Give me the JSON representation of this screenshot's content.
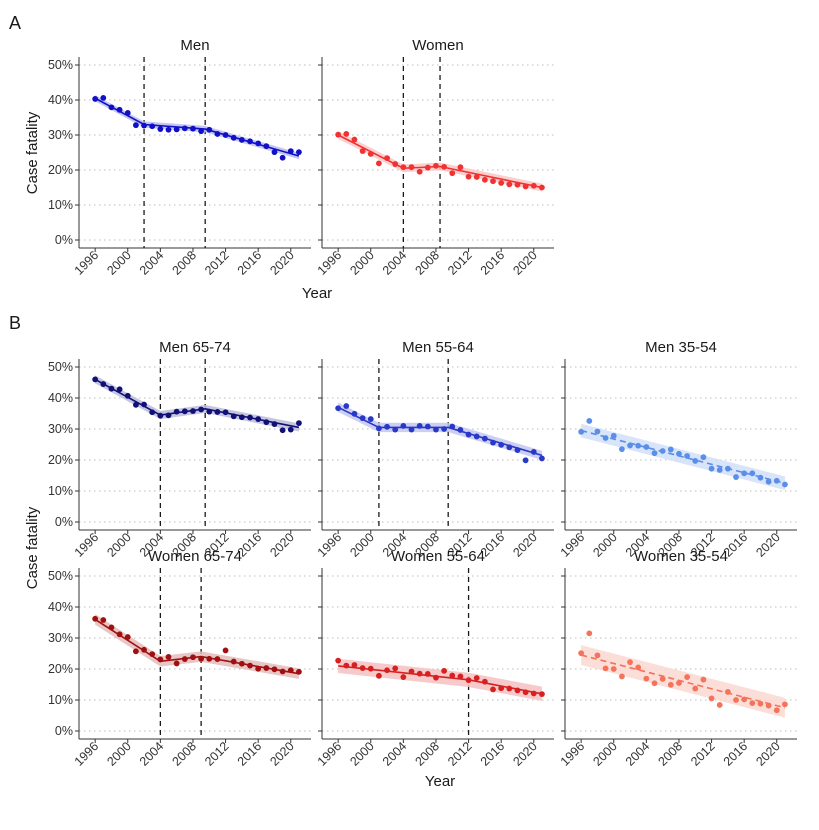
{
  "figure": {
    "panel_a_letter": "A",
    "panel_b_letter": "B",
    "ylabel": "Case fatality",
    "xlabel": "Year",
    "x_tick_labels": [
      "1996",
      "2000",
      "2004",
      "2008",
      "2012",
      "2016",
      "2020"
    ],
    "y_tick_labels": [
      "0%",
      "10%",
      "20%",
      "30%",
      "40%",
      "50%"
    ]
  },
  "colors": {
    "men": "#1010c8",
    "women": "#f03232",
    "men_65_74": "#101078",
    "men_55_64": "#2838c8",
    "men_35_54": "#5a8ee8",
    "women_65_74": "#a01010",
    "women_55_64": "#d82020",
    "women_35_54": "#f4735a",
    "grid": "#bdbdbd",
    "axis": "#333333"
  },
  "chart_data": [
    {
      "type": "line",
      "panel": "A",
      "title": "Men",
      "xlabel": "Year",
      "ylabel": "Case fatality",
      "xlim": [
        1995,
        2021.5
      ],
      "ylim": [
        0,
        50
      ],
      "grid": "horizontal-dotted",
      "x_ticks": [
        1996,
        2000,
        2004,
        2008,
        2012,
        2016,
        2020
      ],
      "y_ticks": [
        0,
        10,
        20,
        30,
        40,
        50
      ],
      "breakpoints": [
        2002,
        2009.5
      ],
      "series": [
        {
          "color": "men",
          "x": [
            1996,
            1997,
            1998,
            1999,
            2000,
            2001,
            2002,
            2003,
            2004,
            2005,
            2006,
            2007,
            2008,
            2009,
            2010,
            2011,
            2012,
            2013,
            2014,
            2015,
            2016,
            2017,
            2018,
            2019,
            2020,
            2021
          ],
          "values": [
            40.3,
            40.6,
            37.9,
            37.2,
            36.3,
            32.8,
            32.7,
            32.5,
            31.7,
            31.5,
            31.6,
            31.9,
            31.8,
            31.1,
            31.5,
            30.3,
            30.0,
            29.2,
            28.6,
            28.2,
            27.6,
            26.8,
            25.1,
            23.5,
            25.4,
            25.1
          ],
          "fit_x": [
            1996,
            2002,
            2009.5,
            2021
          ],
          "fit": [
            40.5,
            33.0,
            31.7,
            24.0
          ],
          "band": 0.9,
          "dashed": false
        }
      ]
    },
    {
      "type": "line",
      "panel": "A",
      "title": "Women",
      "xlim": [
        1995,
        2021.5
      ],
      "ylim": [
        0,
        50
      ],
      "grid": "horizontal-dotted",
      "x_ticks": [
        1996,
        2000,
        2004,
        2008,
        2012,
        2016,
        2020
      ],
      "y_ticks": [
        0,
        10,
        20,
        30,
        40,
        50
      ],
      "breakpoints": [
        2004,
        2008.5
      ],
      "series": [
        {
          "color": "women",
          "x": [
            1996,
            1997,
            1998,
            1999,
            2000,
            2001,
            2002,
            2003,
            2004,
            2005,
            2006,
            2007,
            2008,
            2009,
            2010,
            2011,
            2012,
            2013,
            2014,
            2015,
            2016,
            2017,
            2018,
            2019,
            2020,
            2021
          ],
          "values": [
            30.1,
            30.3,
            28.7,
            25.4,
            24.6,
            21.9,
            23.4,
            21.7,
            20.8,
            20.8,
            19.5,
            20.7,
            21.2,
            20.9,
            19.1,
            20.8,
            18.1,
            18.0,
            17.2,
            16.8,
            16.3,
            15.9,
            15.8,
            15.3,
            15.5,
            15.0
          ],
          "fit_x": [
            1996,
            2004,
            2008.5,
            2021
          ],
          "fit": [
            30.0,
            20.5,
            21.0,
            15.0
          ],
          "band": 1.1,
          "dashed": false
        }
      ]
    },
    {
      "type": "line",
      "panel": "B",
      "title": "Men 65-74",
      "xlim": [
        1995,
        2021.5
      ],
      "ylim": [
        0,
        50
      ],
      "x_ticks": [
        1996,
        2000,
        2004,
        2008,
        2012,
        2016,
        2020
      ],
      "y_ticks": [
        0,
        10,
        20,
        30,
        40,
        50
      ],
      "breakpoints": [
        2004,
        2009.5
      ],
      "series": [
        {
          "color": "men_65_74",
          "x": [
            1996,
            1997,
            1998,
            1999,
            2000,
            2001,
            2002,
            2003,
            2004,
            2005,
            2006,
            2007,
            2008,
            2009,
            2010,
            2011,
            2012,
            2013,
            2014,
            2015,
            2016,
            2017,
            2018,
            2019,
            2020,
            2021
          ],
          "values": [
            46.0,
            44.5,
            43.0,
            42.8,
            40.7,
            37.8,
            37.9,
            35.4,
            34.3,
            34.4,
            35.6,
            35.7,
            35.8,
            36.3,
            35.6,
            35.5,
            35.4,
            34.1,
            33.8,
            33.7,
            33.2,
            32.2,
            31.6,
            29.6,
            29.8,
            31.9
          ],
          "fit_x": [
            1996,
            2004,
            2009.5,
            2021
          ],
          "fit": [
            46.0,
            34.5,
            36.5,
            30.5
          ],
          "band": 1.3,
          "dashed": false
        }
      ]
    },
    {
      "type": "line",
      "panel": "B",
      "title": "Men 55-64",
      "xlim": [
        1995,
        2021.5
      ],
      "ylim": [
        0,
        50
      ],
      "x_ticks": [
        1996,
        2000,
        2004,
        2008,
        2012,
        2016,
        2020
      ],
      "y_ticks": [
        0,
        10,
        20,
        30,
        40,
        50
      ],
      "breakpoints": [
        2001,
        2009.5
      ],
      "series": [
        {
          "color": "men_55_64",
          "x": [
            1996,
            1997,
            1998,
            1999,
            2000,
            2001,
            2002,
            2003,
            2004,
            2005,
            2006,
            2007,
            2008,
            2009,
            2010,
            2011,
            2012,
            2013,
            2014,
            2015,
            2016,
            2017,
            2018,
            2019,
            2020,
            2021
          ],
          "values": [
            36.7,
            37.4,
            34.9,
            33.5,
            33.2,
            30.2,
            30.7,
            29.8,
            31.0,
            29.8,
            31.0,
            30.8,
            29.8,
            30.0,
            30.8,
            29.7,
            28.2,
            27.6,
            26.9,
            25.6,
            24.9,
            24.1,
            23.2,
            19.9,
            22.6,
            20.5
          ],
          "fit_x": [
            1996,
            2001,
            2009.5,
            2021
          ],
          "fit": [
            37.0,
            30.5,
            30.5,
            21.5
          ],
          "band": 1.5,
          "dashed": false
        }
      ]
    },
    {
      "type": "line",
      "panel": "B",
      "title": "Men 35-54",
      "xlim": [
        1995,
        2021.5
      ],
      "ylim": [
        0,
        50
      ],
      "x_ticks": [
        1996,
        2000,
        2004,
        2008,
        2012,
        2016,
        2020
      ],
      "y_ticks": [
        0,
        10,
        20,
        30,
        40,
        50
      ],
      "breakpoints": [],
      "series": [
        {
          "color": "men_35_54",
          "x": [
            1996,
            1997,
            1998,
            1999,
            2000,
            2001,
            2002,
            2003,
            2004,
            2005,
            2006,
            2007,
            2008,
            2009,
            2010,
            2011,
            2012,
            2013,
            2014,
            2015,
            2016,
            2017,
            2018,
            2019,
            2020,
            2021
          ],
          "values": [
            29.1,
            32.6,
            29.2,
            27.1,
            27.8,
            23.5,
            24.7,
            24.6,
            24.2,
            22.2,
            22.9,
            23.4,
            22.0,
            21.3,
            19.7,
            20.9,
            17.2,
            16.8,
            17.2,
            14.5,
            15.7,
            15.7,
            14.3,
            13.0,
            13.3,
            12.1
          ],
          "fit_x": [
            1996,
            2021
          ],
          "fit": [
            29.5,
            12.5
          ],
          "band": 2.2,
          "dashed": true
        }
      ]
    },
    {
      "type": "line",
      "panel": "B",
      "title": "Women 65-74",
      "xlim": [
        1995,
        2021.5
      ],
      "ylim": [
        0,
        50
      ],
      "x_ticks": [
        1996,
        2000,
        2004,
        2008,
        2012,
        2016,
        2020
      ],
      "y_ticks": [
        0,
        10,
        20,
        30,
        40,
        50
      ],
      "breakpoints": [
        2004,
        2009
      ],
      "series": [
        {
          "color": "women_65_74",
          "x": [
            1996,
            1997,
            1998,
            1999,
            2000,
            2001,
            2002,
            2003,
            2004,
            2005,
            2006,
            2007,
            2008,
            2009,
            2010,
            2011,
            2012,
            2013,
            2014,
            2015,
            2016,
            2017,
            2018,
            2019,
            2020,
            2021
          ],
          "values": [
            36.2,
            35.8,
            33.4,
            31.2,
            30.3,
            25.7,
            26.2,
            24.8,
            23.1,
            23.9,
            21.8,
            23.2,
            23.8,
            23.3,
            23.3,
            23.2,
            26.0,
            22.4,
            21.7,
            21.1,
            20.1,
            20.3,
            19.9,
            19.2,
            19.6,
            19.1
          ],
          "fit_x": [
            1996,
            2004,
            2009,
            2021
          ],
          "fit": [
            36.0,
            22.5,
            24.0,
            18.5
          ],
          "band": 1.7,
          "dashed": false
        }
      ]
    },
    {
      "type": "line",
      "panel": "B",
      "title": "Women 55-64",
      "xlim": [
        1995,
        2021.5
      ],
      "ylim": [
        0,
        50
      ],
      "x_ticks": [
        1996,
        2000,
        2004,
        2008,
        2012,
        2016,
        2020
      ],
      "y_ticks": [
        0,
        10,
        20,
        30,
        40,
        50
      ],
      "breakpoints": [
        2012
      ],
      "series": [
        {
          "color": "women_55_64",
          "x": [
            1996,
            1997,
            1998,
            1999,
            2000,
            2001,
            2002,
            2003,
            2004,
            2005,
            2006,
            2007,
            2008,
            2009,
            2010,
            2011,
            2012,
            2013,
            2014,
            2015,
            2016,
            2017,
            2018,
            2019,
            2020,
            2021
          ],
          "values": [
            22.7,
            21.1,
            21.3,
            20.3,
            20.1,
            17.8,
            19.6,
            20.2,
            17.4,
            19.2,
            18.5,
            18.4,
            17.2,
            19.4,
            17.9,
            17.6,
            16.4,
            17.1,
            15.9,
            13.4,
            13.8,
            13.7,
            13.1,
            12.5,
            12.1,
            11.9
          ],
          "fit_x": [
            1996,
            2012,
            2021
          ],
          "fit": [
            21.0,
            16.5,
            12.0
          ],
          "band": 2.3,
          "dashed": false
        }
      ]
    },
    {
      "type": "line",
      "panel": "B",
      "title": "Women 35-54",
      "xlim": [
        1995,
        2021.5
      ],
      "ylim": [
        0,
        50
      ],
      "x_ticks": [
        1996,
        2000,
        2004,
        2008,
        2012,
        2016,
        2020
      ],
      "y_ticks": [
        0,
        10,
        20,
        30,
        40,
        50
      ],
      "breakpoints": [],
      "series": [
        {
          "color": "women_35_54",
          "x": [
            1996,
            1997,
            1998,
            1999,
            2000,
            2001,
            2002,
            2003,
            2004,
            2005,
            2006,
            2007,
            2008,
            2009,
            2010,
            2011,
            2012,
            2013,
            2014,
            2015,
            2016,
            2017,
            2018,
            2019,
            2020,
            2021
          ],
          "values": [
            25.1,
            31.5,
            24.4,
            20.2,
            20.0,
            17.6,
            22.2,
            20.5,
            16.9,
            15.4,
            16.8,
            14.9,
            15.5,
            17.4,
            13.7,
            16.6,
            10.5,
            8.4,
            12.6,
            10.0,
            10.2,
            9.0,
            8.8,
            8.2,
            6.7,
            8.6
          ],
          "fit_x": [
            1996,
            2021
          ],
          "fit": [
            24.5,
            7.5
          ],
          "band": 3.2,
          "dashed": true
        }
      ]
    }
  ]
}
